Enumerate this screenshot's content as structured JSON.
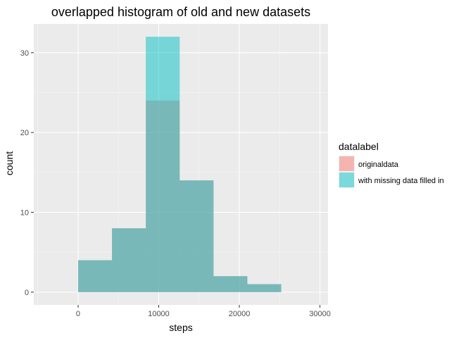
{
  "chart_data": {
    "type": "bar",
    "title": "overlapped histogram of old and new datasets",
    "xlabel": "steps",
    "ylabel": "count",
    "xlim": [
      -5500,
      31000
    ],
    "ylim": [
      -1.6,
      33.6
    ],
    "x_ticks": [
      0,
      10000,
      20000,
      30000
    ],
    "x_tick_labels": [
      "0",
      "10000",
      "20000",
      "30000"
    ],
    "y_ticks": [
      0,
      10,
      20,
      30
    ],
    "y_tick_labels": [
      "0",
      "10",
      "20",
      "30"
    ],
    "bins": [
      [
        0,
        4200
      ],
      [
        4200,
        8400
      ],
      [
        8400,
        12600
      ],
      [
        12600,
        16800
      ],
      [
        16800,
        21000
      ],
      [
        21000,
        25200
      ]
    ],
    "series": [
      {
        "name": "originaldata",
        "color": "#F8766D",
        "values": [
          4,
          8,
          24,
          14,
          2,
          1
        ]
      },
      {
        "name": "with missing data filled in",
        "color": "#00BFC4",
        "values": [
          4,
          8,
          32,
          14,
          2,
          1
        ]
      }
    ],
    "grid": true,
    "legend": {
      "title": "datalabel",
      "position": "right",
      "entries": [
        "originaldata",
        "with missing data filled in"
      ]
    }
  }
}
